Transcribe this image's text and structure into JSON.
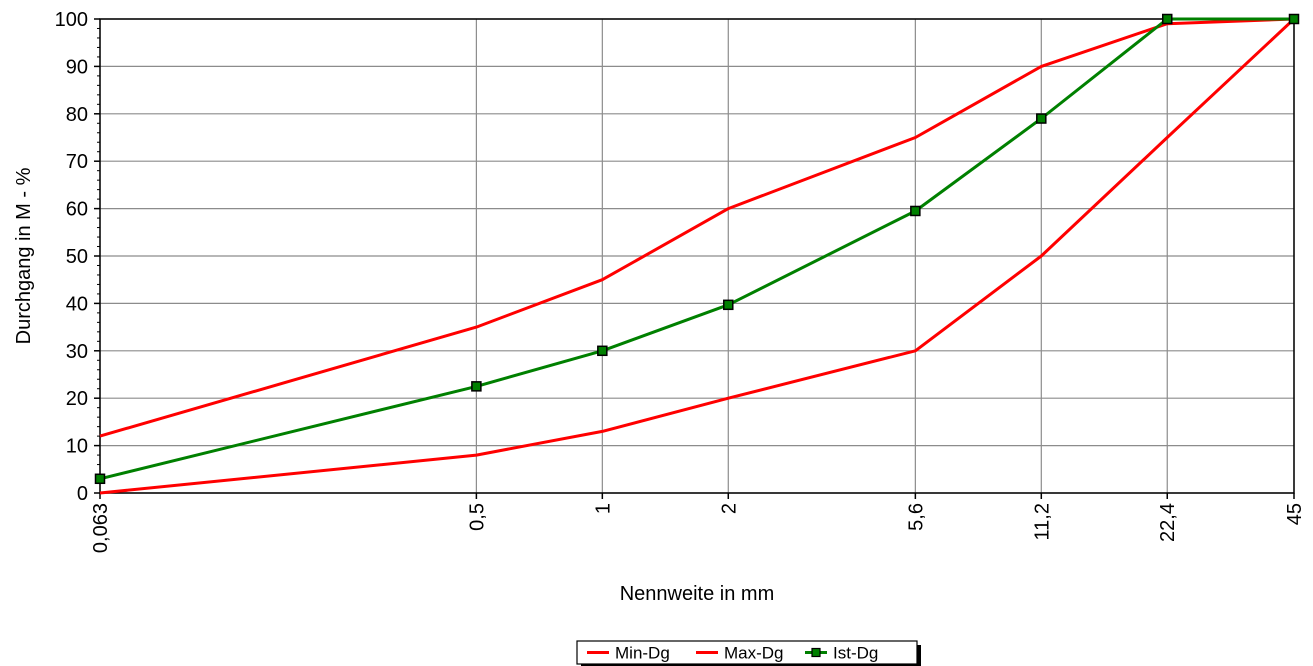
{
  "chart_data": {
    "type": "line",
    "title": "",
    "xlabel": "Nennweite in mm",
    "ylabel": "Durchgang in M - %",
    "x_categories": [
      "0,063",
      "0,5",
      "1",
      "2",
      "5,6",
      "11,2",
      "22,4",
      "45"
    ],
    "x_scale": "log",
    "x_values": [
      0.063,
      0.5,
      1,
      2,
      5.6,
      11.2,
      22.4,
      45
    ],
    "ylim": [
      0,
      100
    ],
    "yticks": [
      0,
      10,
      20,
      30,
      40,
      50,
      60,
      70,
      80,
      90,
      100
    ],
    "grid": true,
    "legend_position": "bottom",
    "series": [
      {
        "name": "Min-Dg",
        "color": "#ff0000",
        "marker": "none",
        "values": [
          0,
          8,
          13,
          20,
          30,
          50,
          75,
          100
        ]
      },
      {
        "name": "Max-Dg",
        "color": "#ff0000",
        "marker": "none",
        "values": [
          12,
          35,
          45,
          60,
          75,
          90,
          99,
          100
        ]
      },
      {
        "name": "Ist-Dg",
        "color": "#008000",
        "marker": "square",
        "values": [
          3,
          22.5,
          30,
          39.7,
          59.5,
          79,
          100,
          100
        ]
      }
    ]
  }
}
